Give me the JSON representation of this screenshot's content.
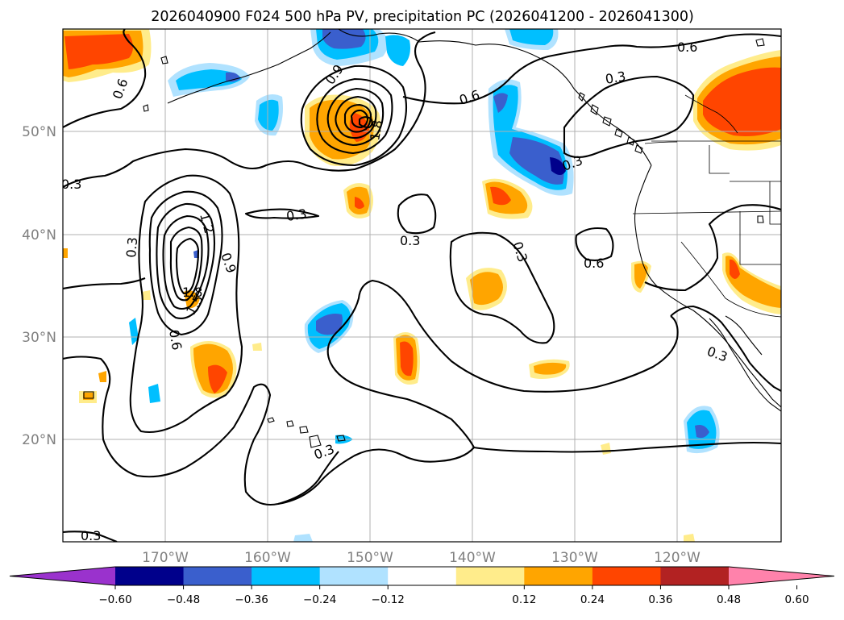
{
  "title": "2026040900 F024 500 hPa PV, precipitation PC (2026041200 - 2026041300)",
  "map": {
    "lat_labels": [
      "50°N",
      "40°N",
      "30°N",
      "20°N"
    ],
    "lon_labels": [
      "170°W",
      "160°W",
      "150°W",
      "140°W",
      "130°W",
      "120°W"
    ],
    "gridlines": true
  },
  "pv_contour_labels": [
    "0.6",
    "0.3",
    "0.9",
    "1.8",
    "0.6",
    "0.3",
    "0.6",
    "0.3",
    "0.3",
    "1.2",
    "0.9",
    "1.8",
    "1.5",
    "0.3",
    "0.3",
    "0.6",
    "0.6",
    "0.3",
    "0.3",
    "0.3"
  ],
  "colorbar": {
    "ticks": [
      "−0.60",
      "−0.48",
      "−0.36",
      "−0.24",
      "−0.12",
      "0.12",
      "0.24",
      "0.36",
      "0.48",
      "0.60"
    ],
    "colors": [
      "#9a32cd",
      "#00008b",
      "#3a5fcd",
      "#00bfff",
      "#b0e2ff",
      "#ffffff",
      "#ffec8b",
      "#ffa500",
      "#ff4500",
      "#b22222",
      "#ff82ab"
    ],
    "extend": "both"
  }
}
